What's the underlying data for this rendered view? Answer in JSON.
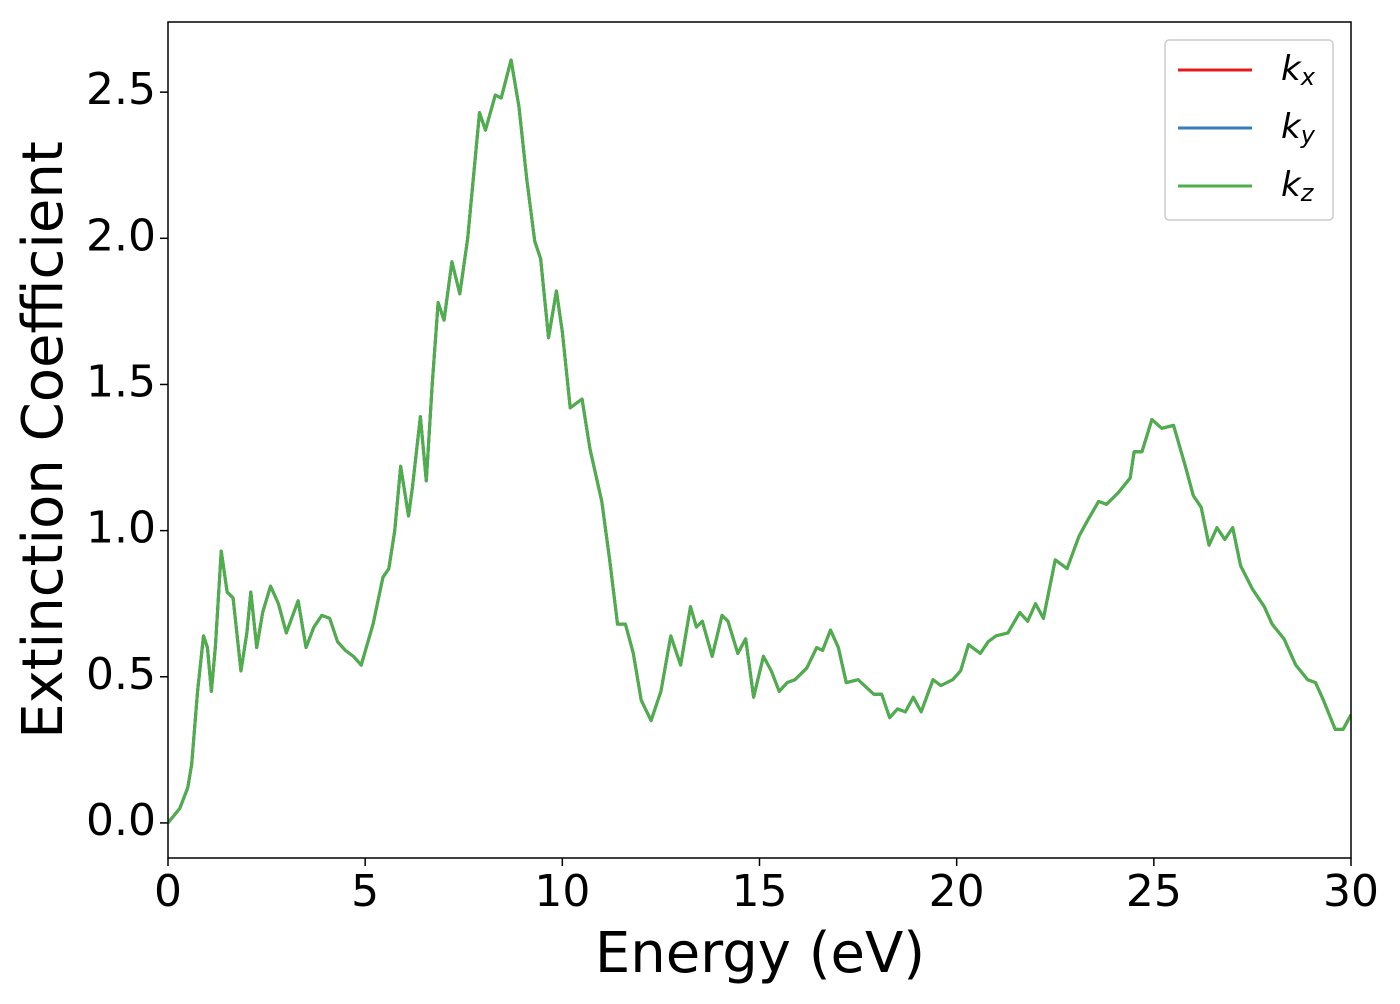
{
  "chart_data": {
    "type": "line",
    "xlabel": "Energy (eV)",
    "ylabel": "Extinction Coefficient",
    "xlim": [
      0,
      30
    ],
    "ylim": [
      -0.12,
      2.74
    ],
    "xticks": [
      0,
      5,
      10,
      15,
      20,
      25,
      30
    ],
    "yticks": [
      {
        "value": 0,
        "label": "0.0"
      },
      0.5,
      {
        "value": 1,
        "label": "1.0"
      },
      1.5,
      {
        "value": 2,
        "label": "2.0"
      },
      2.5
    ],
    "legend": "upper right",
    "grid": false,
    "x": [
      0,
      0.3,
      0.5,
      0.6,
      0.75,
      0.9,
      1.0,
      1.1,
      1.2,
      1.35,
      1.5,
      1.65,
      1.85,
      2.0,
      2.1,
      2.25,
      2.4,
      2.6,
      2.8,
      3.0,
      3.3,
      3.5,
      3.7,
      3.9,
      4.1,
      4.3,
      4.5,
      4.7,
      4.9,
      5.2,
      5.45,
      5.6,
      5.75,
      5.9,
      6.1,
      6.2,
      6.4,
      6.55,
      6.7,
      6.85,
      7.0,
      7.2,
      7.4,
      7.6,
      7.9,
      8.05,
      8.3,
      8.45,
      8.7,
      8.9,
      9.1,
      9.3,
      9.45,
      9.65,
      9.85,
      10.0,
      10.2,
      10.5,
      10.7,
      11.0,
      11.2,
      11.4,
      11.6,
      11.8,
      12.0,
      12.25,
      12.5,
      12.75,
      13.0,
      13.25,
      13.4,
      13.55,
      13.8,
      14.05,
      14.2,
      14.45,
      14.65,
      14.85,
      15.1,
      15.3,
      15.5,
      15.7,
      15.9,
      16.2,
      16.45,
      16.6,
      16.8,
      17.0,
      17.2,
      17.5,
      17.9,
      18.1,
      18.3,
      18.5,
      18.7,
      18.9,
      19.1,
      19.4,
      19.6,
      19.9,
      20.1,
      20.3,
      20.6,
      20.8,
      21.0,
      21.3,
      21.6,
      21.8,
      22.0,
      22.2,
      22.5,
      22.8,
      23.1,
      23.3,
      23.6,
      23.8,
      24.1,
      24.4,
      24.5,
      24.7,
      24.95,
      25.2,
      25.5,
      25.8,
      26.0,
      26.2,
      26.4,
      26.6,
      26.8,
      27.0,
      27.2,
      27.5,
      27.8,
      28.0,
      28.3,
      28.6,
      28.9,
      29.1,
      29.3,
      29.6,
      29.8,
      30.0
    ],
    "series": [
      {
        "name": "kx",
        "color": "#e41a1c",
        "values": [
          0,
          0.05,
          0.12,
          0.2,
          0.45,
          0.64,
          0.6,
          0.45,
          0.6,
          0.93,
          0.79,
          0.77,
          0.52,
          0.65,
          0.79,
          0.6,
          0.72,
          0.81,
          0.75,
          0.65,
          0.76,
          0.6,
          0.67,
          0.71,
          0.7,
          0.62,
          0.59,
          0.57,
          0.54,
          0.68,
          0.84,
          0.87,
          1.0,
          1.22,
          1.05,
          1.15,
          1.39,
          1.17,
          1.5,
          1.78,
          1.72,
          1.92,
          1.81,
          2.0,
          2.43,
          2.37,
          2.49,
          2.48,
          2.61,
          2.45,
          2.2,
          1.99,
          1.93,
          1.66,
          1.82,
          1.68,
          1.42,
          1.45,
          1.28,
          1.1,
          0.9,
          0.68,
          0.68,
          0.58,
          0.42,
          0.35,
          0.45,
          0.64,
          0.54,
          0.74,
          0.67,
          0.69,
          0.57,
          0.71,
          0.69,
          0.58,
          0.63,
          0.43,
          0.57,
          0.52,
          0.45,
          0.48,
          0.49,
          0.53,
          0.6,
          0.59,
          0.66,
          0.6,
          0.48,
          0.49,
          0.44,
          0.44,
          0.36,
          0.39,
          0.38,
          0.43,
          0.38,
          0.49,
          0.47,
          0.49,
          0.52,
          0.61,
          0.58,
          0.62,
          0.64,
          0.65,
          0.72,
          0.69,
          0.75,
          0.7,
          0.9,
          0.87,
          0.98,
          1.03,
          1.1,
          1.09,
          1.13,
          1.18,
          1.27,
          1.27,
          1.38,
          1.35,
          1.36,
          1.22,
          1.12,
          1.08,
          0.95,
          1.01,
          0.97,
          1.01,
          0.88,
          0.8,
          0.74,
          0.68,
          0.63,
          0.54,
          0.49,
          0.48,
          0.42,
          0.32,
          0.32,
          0.37
        ]
      },
      {
        "name": "ky",
        "color": "#377eb8",
        "values": [
          0,
          0.05,
          0.12,
          0.2,
          0.45,
          0.64,
          0.6,
          0.45,
          0.6,
          0.93,
          0.79,
          0.77,
          0.52,
          0.65,
          0.79,
          0.6,
          0.72,
          0.81,
          0.75,
          0.65,
          0.76,
          0.6,
          0.67,
          0.71,
          0.7,
          0.62,
          0.59,
          0.57,
          0.54,
          0.68,
          0.84,
          0.87,
          1.0,
          1.22,
          1.05,
          1.15,
          1.39,
          1.17,
          1.5,
          1.78,
          1.72,
          1.92,
          1.81,
          2.0,
          2.43,
          2.37,
          2.49,
          2.48,
          2.61,
          2.45,
          2.2,
          1.99,
          1.93,
          1.66,
          1.82,
          1.68,
          1.42,
          1.45,
          1.28,
          1.1,
          0.9,
          0.68,
          0.68,
          0.58,
          0.42,
          0.35,
          0.45,
          0.64,
          0.54,
          0.74,
          0.67,
          0.69,
          0.57,
          0.71,
          0.69,
          0.58,
          0.63,
          0.43,
          0.57,
          0.52,
          0.45,
          0.48,
          0.49,
          0.53,
          0.6,
          0.59,
          0.66,
          0.6,
          0.48,
          0.49,
          0.44,
          0.44,
          0.36,
          0.39,
          0.38,
          0.43,
          0.38,
          0.49,
          0.47,
          0.49,
          0.52,
          0.61,
          0.58,
          0.62,
          0.64,
          0.65,
          0.72,
          0.69,
          0.75,
          0.7,
          0.9,
          0.87,
          0.98,
          1.03,
          1.1,
          1.09,
          1.13,
          1.18,
          1.27,
          1.27,
          1.38,
          1.35,
          1.36,
          1.22,
          1.12,
          1.08,
          0.95,
          1.01,
          0.97,
          1.01,
          0.88,
          0.8,
          0.74,
          0.68,
          0.63,
          0.54,
          0.49,
          0.48,
          0.42,
          0.32,
          0.32,
          0.37
        ]
      },
      {
        "name": "kz",
        "color": "#4daf4a",
        "values": [
          0,
          0.05,
          0.12,
          0.2,
          0.45,
          0.64,
          0.6,
          0.45,
          0.6,
          0.93,
          0.79,
          0.77,
          0.52,
          0.65,
          0.79,
          0.6,
          0.72,
          0.81,
          0.75,
          0.65,
          0.76,
          0.6,
          0.67,
          0.71,
          0.7,
          0.62,
          0.59,
          0.57,
          0.54,
          0.68,
          0.84,
          0.87,
          1.0,
          1.22,
          1.05,
          1.15,
          1.39,
          1.17,
          1.5,
          1.78,
          1.72,
          1.92,
          1.81,
          2.0,
          2.43,
          2.37,
          2.49,
          2.48,
          2.61,
          2.45,
          2.2,
          1.99,
          1.93,
          1.66,
          1.82,
          1.68,
          1.42,
          1.45,
          1.28,
          1.1,
          0.9,
          0.68,
          0.68,
          0.58,
          0.42,
          0.35,
          0.45,
          0.64,
          0.54,
          0.74,
          0.67,
          0.69,
          0.57,
          0.71,
          0.69,
          0.58,
          0.63,
          0.43,
          0.57,
          0.52,
          0.45,
          0.48,
          0.49,
          0.53,
          0.6,
          0.59,
          0.66,
          0.6,
          0.48,
          0.49,
          0.44,
          0.44,
          0.36,
          0.39,
          0.38,
          0.43,
          0.38,
          0.49,
          0.47,
          0.49,
          0.52,
          0.61,
          0.58,
          0.62,
          0.64,
          0.65,
          0.72,
          0.69,
          0.75,
          0.7,
          0.9,
          0.87,
          0.98,
          1.03,
          1.1,
          1.09,
          1.13,
          1.18,
          1.27,
          1.27,
          1.38,
          1.35,
          1.36,
          1.22,
          1.12,
          1.08,
          0.95,
          1.01,
          0.97,
          1.01,
          0.88,
          0.8,
          0.74,
          0.68,
          0.63,
          0.54,
          0.49,
          0.48,
          0.42,
          0.32,
          0.32,
          0.37
        ]
      }
    ]
  }
}
